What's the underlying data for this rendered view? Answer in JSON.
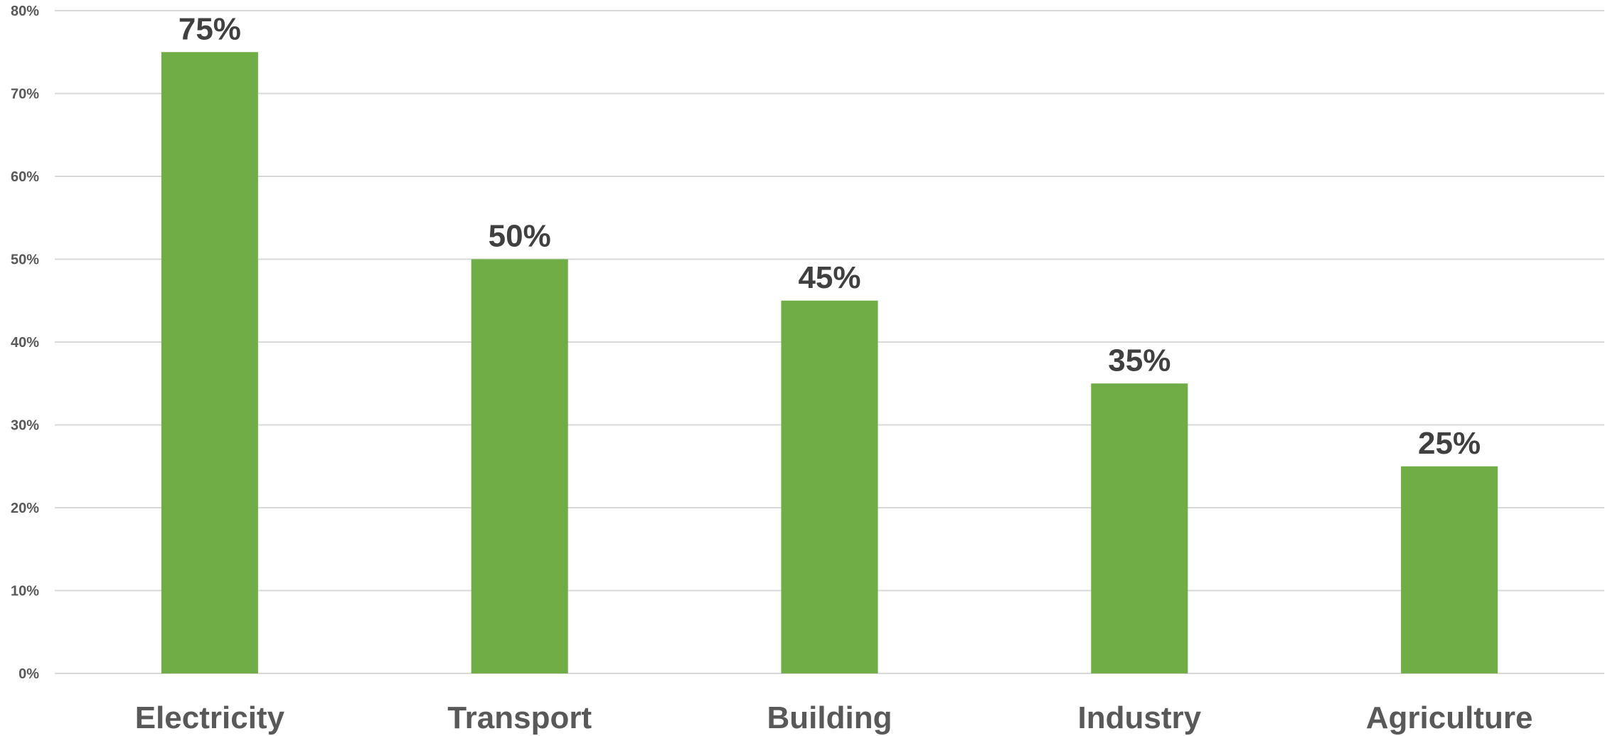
{
  "chart_data": {
    "type": "bar",
    "categories": [
      "Electricity",
      "Transport",
      "Building",
      "Industry",
      "Agriculture"
    ],
    "values": [
      75,
      50,
      45,
      35,
      25
    ],
    "data_labels": [
      "75%",
      "50%",
      "45%",
      "35%",
      "25%"
    ],
    "title": "",
    "xlabel": "",
    "ylabel": "",
    "ylim": [
      0,
      80
    ],
    "yticks": [
      0,
      10,
      20,
      30,
      40,
      50,
      60,
      70,
      80
    ],
    "ytick_labels": [
      "0%",
      "10%",
      "20%",
      "30%",
      "40%",
      "50%",
      "60%",
      "70%",
      "80%"
    ],
    "grid": true,
    "legend": "none",
    "colors": {
      "bar": "#70ad47",
      "grid": "#d9d9d9",
      "tick_text": "#595959",
      "label_text": "#404040"
    }
  }
}
